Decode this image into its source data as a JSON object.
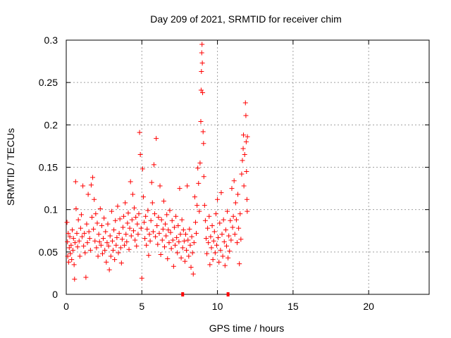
{
  "chart_data": {
    "type": "scatter",
    "title": "Day 209 of 2021, SRMTID for receiver chim",
    "xlabel": "GPS time / hours",
    "ylabel": "SRMTID / TECUs",
    "xlim": [
      0,
      24
    ],
    "ylim": [
      0,
      0.3
    ],
    "xticks": [
      0,
      5,
      10,
      15,
      20
    ],
    "xtick_labels": [
      "0",
      "5",
      "10",
      "15",
      "20"
    ],
    "yticks": [
      0,
      0.05,
      0.1,
      0.15,
      0.2,
      0.25,
      0.3
    ],
    "ytick_labels": [
      "0",
      "0.05",
      "0.1",
      "0.15",
      "0.2",
      "0.25",
      "0.3"
    ],
    "grid": true,
    "marker": "+",
    "color": "#ff0000",
    "gap_markers_x": [
      7.7,
      10.7
    ],
    "series": [
      {
        "name": "SRMTID",
        "points": [
          [
            0.05,
            0.085
          ],
          [
            0.08,
            0.062
          ],
          [
            0.1,
            0.045
          ],
          [
            0.13,
            0.072
          ],
          [
            0.16,
            0.038
          ],
          [
            0.2,
            0.055
          ],
          [
            0.24,
            0.068
          ],
          [
            0.28,
            0.048
          ],
          [
            0.32,
            0.058
          ],
          [
            0.36,
            0.041
          ],
          [
            0.4,
            0.076
          ],
          [
            0.44,
            0.052
          ],
          [
            0.48,
            0.066
          ],
          [
            0.52,
            0.035
          ],
          [
            0.55,
            0.018
          ],
          [
            0.58,
            0.061
          ],
          [
            0.62,
            0.133
          ],
          [
            0.65,
            0.101
          ],
          [
            0.7,
            0.072
          ],
          [
            0.75,
            0.056
          ],
          [
            0.8,
            0.088
          ],
          [
            0.85,
            0.063
          ],
          [
            0.9,
            0.045
          ],
          [
            0.95,
            0.078
          ],
          [
            1.0,
            0.094
          ],
          [
            1.05,
            0.068
          ],
          [
            1.1,
            0.128
          ],
          [
            1.15,
            0.057
          ],
          [
            1.2,
            0.072
          ],
          [
            1.25,
            0.049
          ],
          [
            1.3,
            0.02
          ],
          [
            1.35,
            0.083
          ],
          [
            1.4,
            0.061
          ],
          [
            1.45,
            0.118
          ],
          [
            1.5,
            0.074
          ],
          [
            1.55,
            0.066
          ],
          [
            1.6,
            0.052
          ],
          [
            1.65,
            0.129
          ],
          [
            1.7,
            0.091
          ],
          [
            1.75,
            0.138
          ],
          [
            1.8,
            0.077
          ],
          [
            1.85,
            0.112
          ],
          [
            1.9,
            0.063
          ],
          [
            1.95,
            0.095
          ],
          [
            2.0,
            0.055
          ],
          [
            2.05,
            0.084
          ],
          [
            2.1,
            0.045
          ],
          [
            2.15,
            0.071
          ],
          [
            2.2,
            0.062
          ],
          [
            2.25,
            0.101
          ],
          [
            2.3,
            0.058
          ],
          [
            2.35,
            0.081
          ],
          [
            2.4,
            0.048
          ],
          [
            2.45,
            0.066
          ],
          [
            2.5,
            0.09
          ],
          [
            2.55,
            0.052
          ],
          [
            2.6,
            0.074
          ],
          [
            2.65,
            0.038
          ],
          [
            2.7,
            0.061
          ],
          [
            2.75,
            0.083
          ],
          [
            2.8,
            0.057
          ],
          [
            2.85,
            0.029
          ],
          [
            2.9,
            0.069
          ],
          [
            2.95,
            0.045
          ],
          [
            3.0,
            0.098
          ],
          [
            3.05,
            0.063
          ],
          [
            3.1,
            0.052
          ],
          [
            3.15,
            0.076
          ],
          [
            3.2,
            0.041
          ],
          [
            3.25,
            0.087
          ],
          [
            3.3,
            0.058
          ],
          [
            3.35,
            0.067
          ],
          [
            3.4,
            0.104
          ],
          [
            3.45,
            0.049
          ],
          [
            3.5,
            0.072
          ],
          [
            3.55,
            0.089
          ],
          [
            3.6,
            0.055
          ],
          [
            3.65,
            0.037
          ],
          [
            3.7,
            0.065
          ],
          [
            3.75,
            0.079
          ],
          [
            3.8,
            0.092
          ],
          [
            3.85,
            0.058
          ],
          [
            3.9,
            0.108
          ],
          [
            3.95,
            0.071
          ],
          [
            4.0,
            0.062
          ],
          [
            4.05,
            0.084
          ],
          [
            4.1,
            0.096
          ],
          [
            4.15,
            0.053
          ],
          [
            4.2,
            0.078
          ],
          [
            4.25,
            0.133
          ],
          [
            4.3,
            0.069
          ],
          [
            4.35,
            0.088
          ],
          [
            4.4,
            0.118
          ],
          [
            4.45,
            0.075
          ],
          [
            4.5,
            0.102
          ],
          [
            4.55,
            0.064
          ],
          [
            4.6,
            0.091
          ],
          [
            4.65,
            0.057
          ],
          [
            4.7,
            0.083
          ],
          [
            4.75,
            0.071
          ],
          [
            4.8,
            0.095
          ],
          [
            4.85,
            0.191
          ],
          [
            4.9,
            0.165
          ],
          [
            4.95,
            0.078
          ],
          [
            5.0,
            0.019
          ],
          [
            5.05,
            0.148
          ],
          [
            5.1,
            0.115
          ],
          [
            5.15,
            0.085
          ],
          [
            5.2,
            0.066
          ],
          [
            5.25,
            0.092
          ],
          [
            5.3,
            0.058
          ],
          [
            5.35,
            0.077
          ],
          [
            5.4,
            0.099
          ],
          [
            5.45,
            0.046
          ],
          [
            5.5,
            0.071
          ],
          [
            5.55,
            0.063
          ],
          [
            5.6,
            0.087
          ],
          [
            5.65,
            0.132
          ],
          [
            5.7,
            0.108
          ],
          [
            5.75,
            0.074
          ],
          [
            5.8,
            0.153
          ],
          [
            5.85,
            0.095
          ],
          [
            5.9,
            0.068
          ],
          [
            5.95,
            0.184
          ],
          [
            6.0,
            0.081
          ],
          [
            6.05,
            0.059
          ],
          [
            6.1,
            0.091
          ],
          [
            6.15,
            0.072
          ],
          [
            6.2,
            0.128
          ],
          [
            6.25,
            0.047
          ],
          [
            6.3,
            0.088
          ],
          [
            6.35,
            0.064
          ],
          [
            6.4,
            0.077
          ],
          [
            6.45,
            0.11
          ],
          [
            6.5,
            0.056
          ],
          [
            6.55,
            0.083
          ],
          [
            6.6,
            0.069
          ],
          [
            6.65,
            0.094
          ],
          [
            6.7,
            0.042
          ],
          [
            6.75,
            0.076
          ],
          [
            6.8,
            0.061
          ],
          [
            6.85,
            0.099
          ],
          [
            6.9,
            0.073
          ],
          [
            6.95,
            0.054
          ],
          [
            7.0,
            0.087
          ],
          [
            7.05,
            0.064
          ],
          [
            7.1,
            0.033
          ],
          [
            7.15,
            0.079
          ],
          [
            7.2,
            0.058
          ],
          [
            7.25,
            0.092
          ],
          [
            7.3,
            0.067
          ],
          [
            7.35,
            0.049
          ],
          [
            7.4,
            0.081
          ],
          [
            7.45,
            0.062
          ],
          [
            7.5,
            0.125
          ],
          [
            7.55,
            0.071
          ],
          [
            7.6,
            0.043
          ],
          [
            7.65,
            0.088
          ],
          [
            7.7,
            0.055
          ],
          [
            7.75,
            0.076
          ],
          [
            7.8,
            0.063
          ],
          [
            7.85,
            0.039
          ],
          [
            7.9,
            0.071
          ],
          [
            7.95,
            0.052
          ],
          [
            8.0,
            0.128
          ],
          [
            8.05,
            0.064
          ],
          [
            8.1,
            0.045
          ],
          [
            8.15,
            0.077
          ],
          [
            8.2,
            0.058
          ],
          [
            8.25,
            0.032
          ],
          [
            8.3,
            0.068
          ],
          [
            8.35,
            0.049
          ],
          [
            8.4,
            0.024
          ],
          [
            8.45,
            0.061
          ],
          [
            8.5,
            0.115
          ],
          [
            8.55,
            0.085
          ],
          [
            8.6,
            0.072
          ],
          [
            8.65,
            0.105
          ],
          [
            8.7,
            0.149
          ],
          [
            8.75,
            0.131
          ],
          [
            8.8,
            0.098
          ],
          [
            8.85,
            0.155
          ],
          [
            8.9,
            0.204
          ],
          [
            8.92,
            0.241
          ],
          [
            8.94,
            0.263
          ],
          [
            8.96,
            0.285
          ],
          [
            8.98,
            0.295
          ],
          [
            9.0,
            0.273
          ],
          [
            9.02,
            0.238
          ],
          [
            9.05,
            0.192
          ],
          [
            9.08,
            0.178
          ],
          [
            9.1,
            0.139
          ],
          [
            9.15,
            0.105
          ],
          [
            9.2,
            0.087
          ],
          [
            9.25,
            0.066
          ],
          [
            9.3,
            0.048
          ],
          [
            9.35,
            0.078
          ],
          [
            9.4,
            0.061
          ],
          [
            9.45,
            0.092
          ],
          [
            9.5,
            0.035
          ],
          [
            9.55,
            0.068
          ],
          [
            9.6,
            0.055
          ],
          [
            9.65,
            0.081
          ],
          [
            9.7,
            0.041
          ],
          [
            9.75,
            0.063
          ],
          [
            9.8,
            0.074
          ],
          [
            9.85,
            0.049
          ],
          [
            9.9,
            0.095
          ],
          [
            9.95,
            0.058
          ],
          [
            10.0,
            0.112
          ],
          [
            10.05,
            0.067
          ],
          [
            10.1,
            0.038
          ],
          [
            10.15,
            0.084
          ],
          [
            10.2,
            0.052
          ],
          [
            10.25,
            0.12
          ],
          [
            10.3,
            0.071
          ],
          [
            10.35,
            0.045
          ],
          [
            10.4,
            0.088
          ],
          [
            10.45,
            0.062
          ],
          [
            10.5,
            0.034
          ],
          [
            10.55,
            0.076
          ],
          [
            10.6,
            0.057
          ],
          [
            10.65,
            0.098
          ],
          [
            10.7,
            0.043
          ],
          [
            10.75,
            0.069
          ],
          [
            10.8,
            0.051
          ],
          [
            10.85,
            0.087
          ],
          [
            10.9,
            0.064
          ],
          [
            10.95,
            0.125
          ],
          [
            11.0,
            0.079
          ],
          [
            11.05,
            0.092
          ],
          [
            11.1,
            0.134
          ],
          [
            11.15,
            0.071
          ],
          [
            11.2,
            0.108
          ],
          [
            11.25,
            0.088
          ],
          [
            11.3,
            0.061
          ],
          [
            11.35,
            0.118
          ],
          [
            11.4,
            0.078
          ],
          [
            11.45,
            0.036
          ],
          [
            11.5,
            0.095
          ],
          [
            11.55,
            0.065
          ],
          [
            11.6,
            0.142
          ],
          [
            11.65,
            0.158
          ],
          [
            11.7,
            0.172
          ],
          [
            11.72,
            0.188
          ],
          [
            11.75,
            0.128
          ],
          [
            11.8,
            0.165
          ],
          [
            11.85,
            0.226
          ],
          [
            11.88,
            0.211
          ],
          [
            11.9,
            0.18
          ],
          [
            11.92,
            0.145
          ],
          [
            11.95,
            0.112
          ],
          [
            11.97,
            0.098
          ],
          [
            11.98,
            0.186
          ]
        ]
      }
    ]
  }
}
